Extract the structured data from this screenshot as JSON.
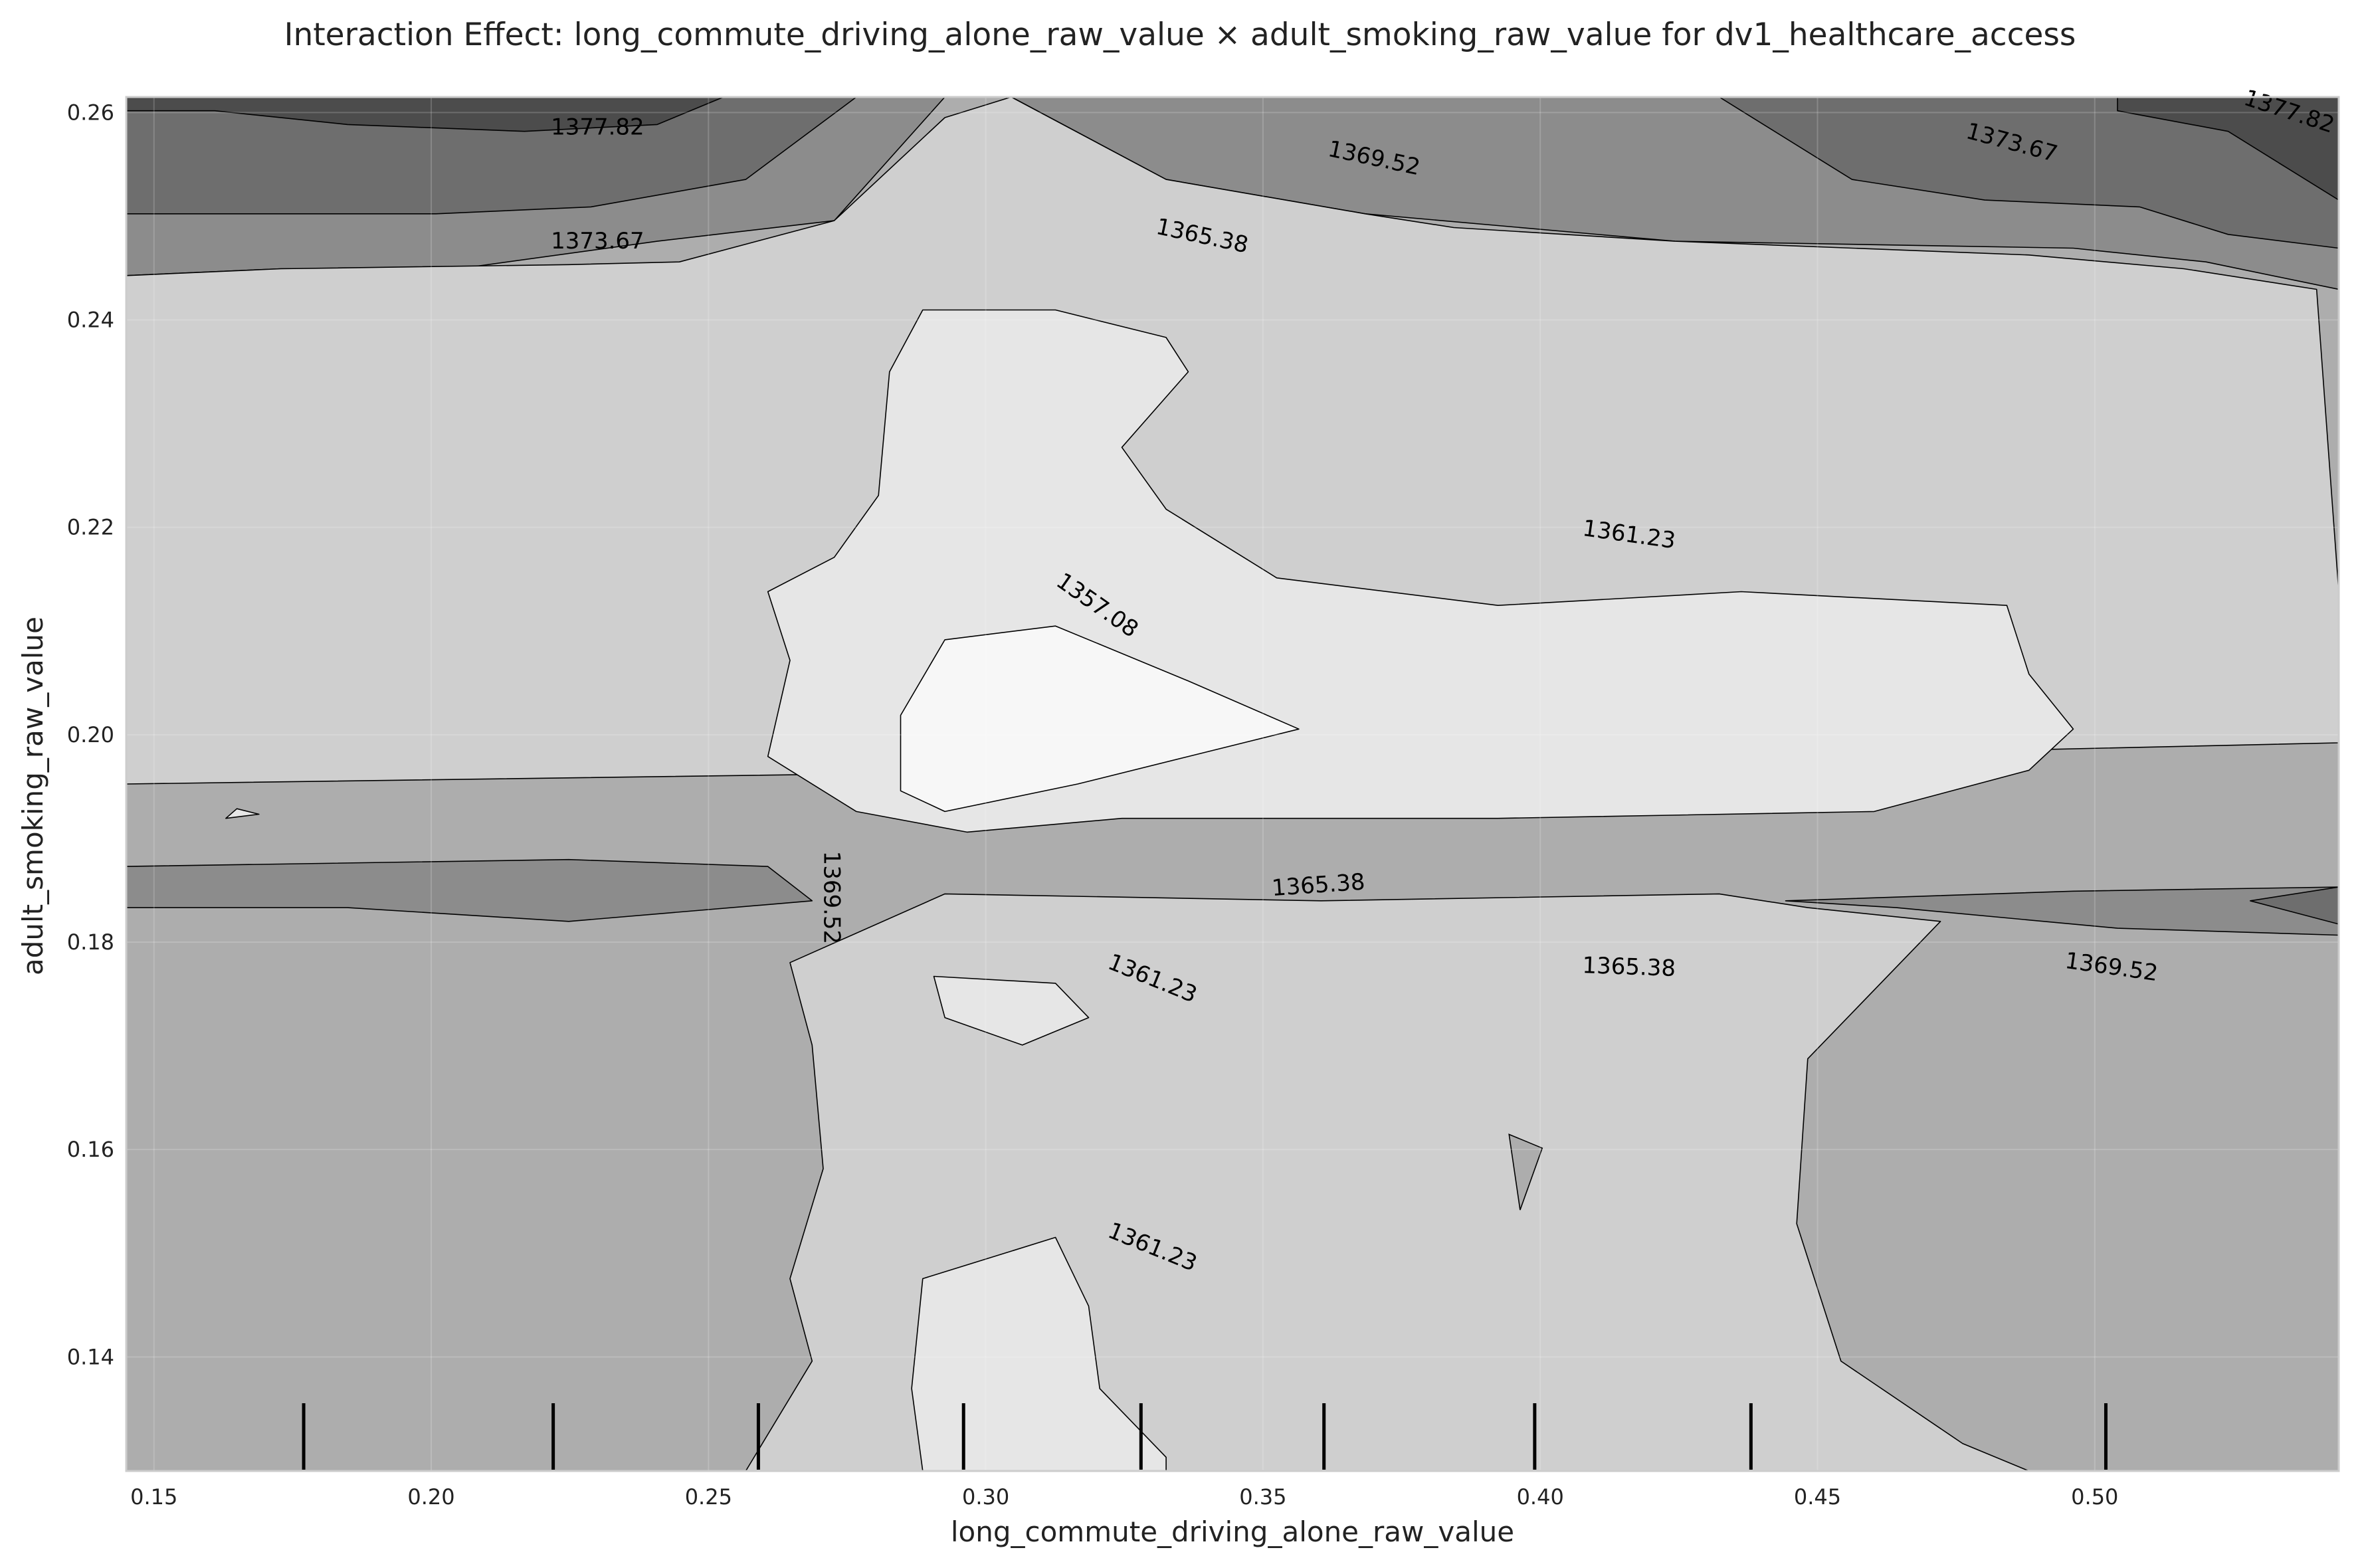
{
  "chart_data": {
    "type": "contour",
    "title": "Interaction Effect: long_commute_driving_alone_raw_value × adult_smoking_raw_value for dv1_healthcare_access",
    "xlabel": "long_commute_driving_alone_raw_value",
    "ylabel": "adult_smoking_raw_value",
    "xlim": [
      0.145,
      0.544
    ],
    "ylim": [
      0.129,
      0.2615
    ],
    "xticks": [
      "0.15",
      "0.20",
      "0.25",
      "0.30",
      "0.35",
      "0.40",
      "0.45",
      "0.50"
    ],
    "yticks": [
      "0.14",
      "0.16",
      "0.18",
      "0.20",
      "0.22",
      "0.24",
      "0.26"
    ],
    "contour_levels": [
      1357.08,
      1361.23,
      1365.38,
      1369.52,
      1373.67,
      1377.82
    ],
    "fill_colors": [
      "#f7f7f7",
      "#e6e6e6",
      "#cfcfcf",
      "#adadad",
      "#8c8c8c",
      "#6e6e6e",
      "#4c4c4c"
    ],
    "contour_labels": [
      {
        "text": "1377.82",
        "x": 0.23,
        "y": 0.2585,
        "angle": 0
      },
      {
        "text": "1373.67",
        "x": 0.23,
        "y": 0.2475,
        "angle": 0
      },
      {
        "text": "1369.52",
        "x": 0.37,
        "y": 0.2555,
        "angle": 12
      },
      {
        "text": "1365.38",
        "x": 0.339,
        "y": 0.248,
        "angle": 12
      },
      {
        "text": "1373.67",
        "x": 0.485,
        "y": 0.257,
        "angle": 15
      },
      {
        "text": "1377.82",
        "x": 0.535,
        "y": 0.26,
        "angle": 18
      },
      {
        "text": "1361.23",
        "x": 0.416,
        "y": 0.2192,
        "angle": 8
      },
      {
        "text": "1357.08",
        "x": 0.32,
        "y": 0.2124,
        "angle": 35
      },
      {
        "text": "1365.38",
        "x": 0.36,
        "y": 0.1854,
        "angle": -4
      },
      {
        "text": "1369.52",
        "x": 0.272,
        "y": 0.1843,
        "angle": 90
      },
      {
        "text": "1365.38",
        "x": 0.416,
        "y": 0.1775,
        "angle": 2
      },
      {
        "text": "1369.52",
        "x": 0.503,
        "y": 0.1775,
        "angle": 8
      },
      {
        "text": "1361.23",
        "x": 0.33,
        "y": 0.1764,
        "angle": 22
      },
      {
        "text": "1361.23",
        "x": 0.33,
        "y": 0.1505,
        "angle": 22
      }
    ],
    "rug_x": [
      0.177,
      0.222,
      0.259,
      0.296,
      0.328,
      0.361,
      0.399,
      0.438,
      0.502
    ],
    "grid": true,
    "legend": "none"
  }
}
